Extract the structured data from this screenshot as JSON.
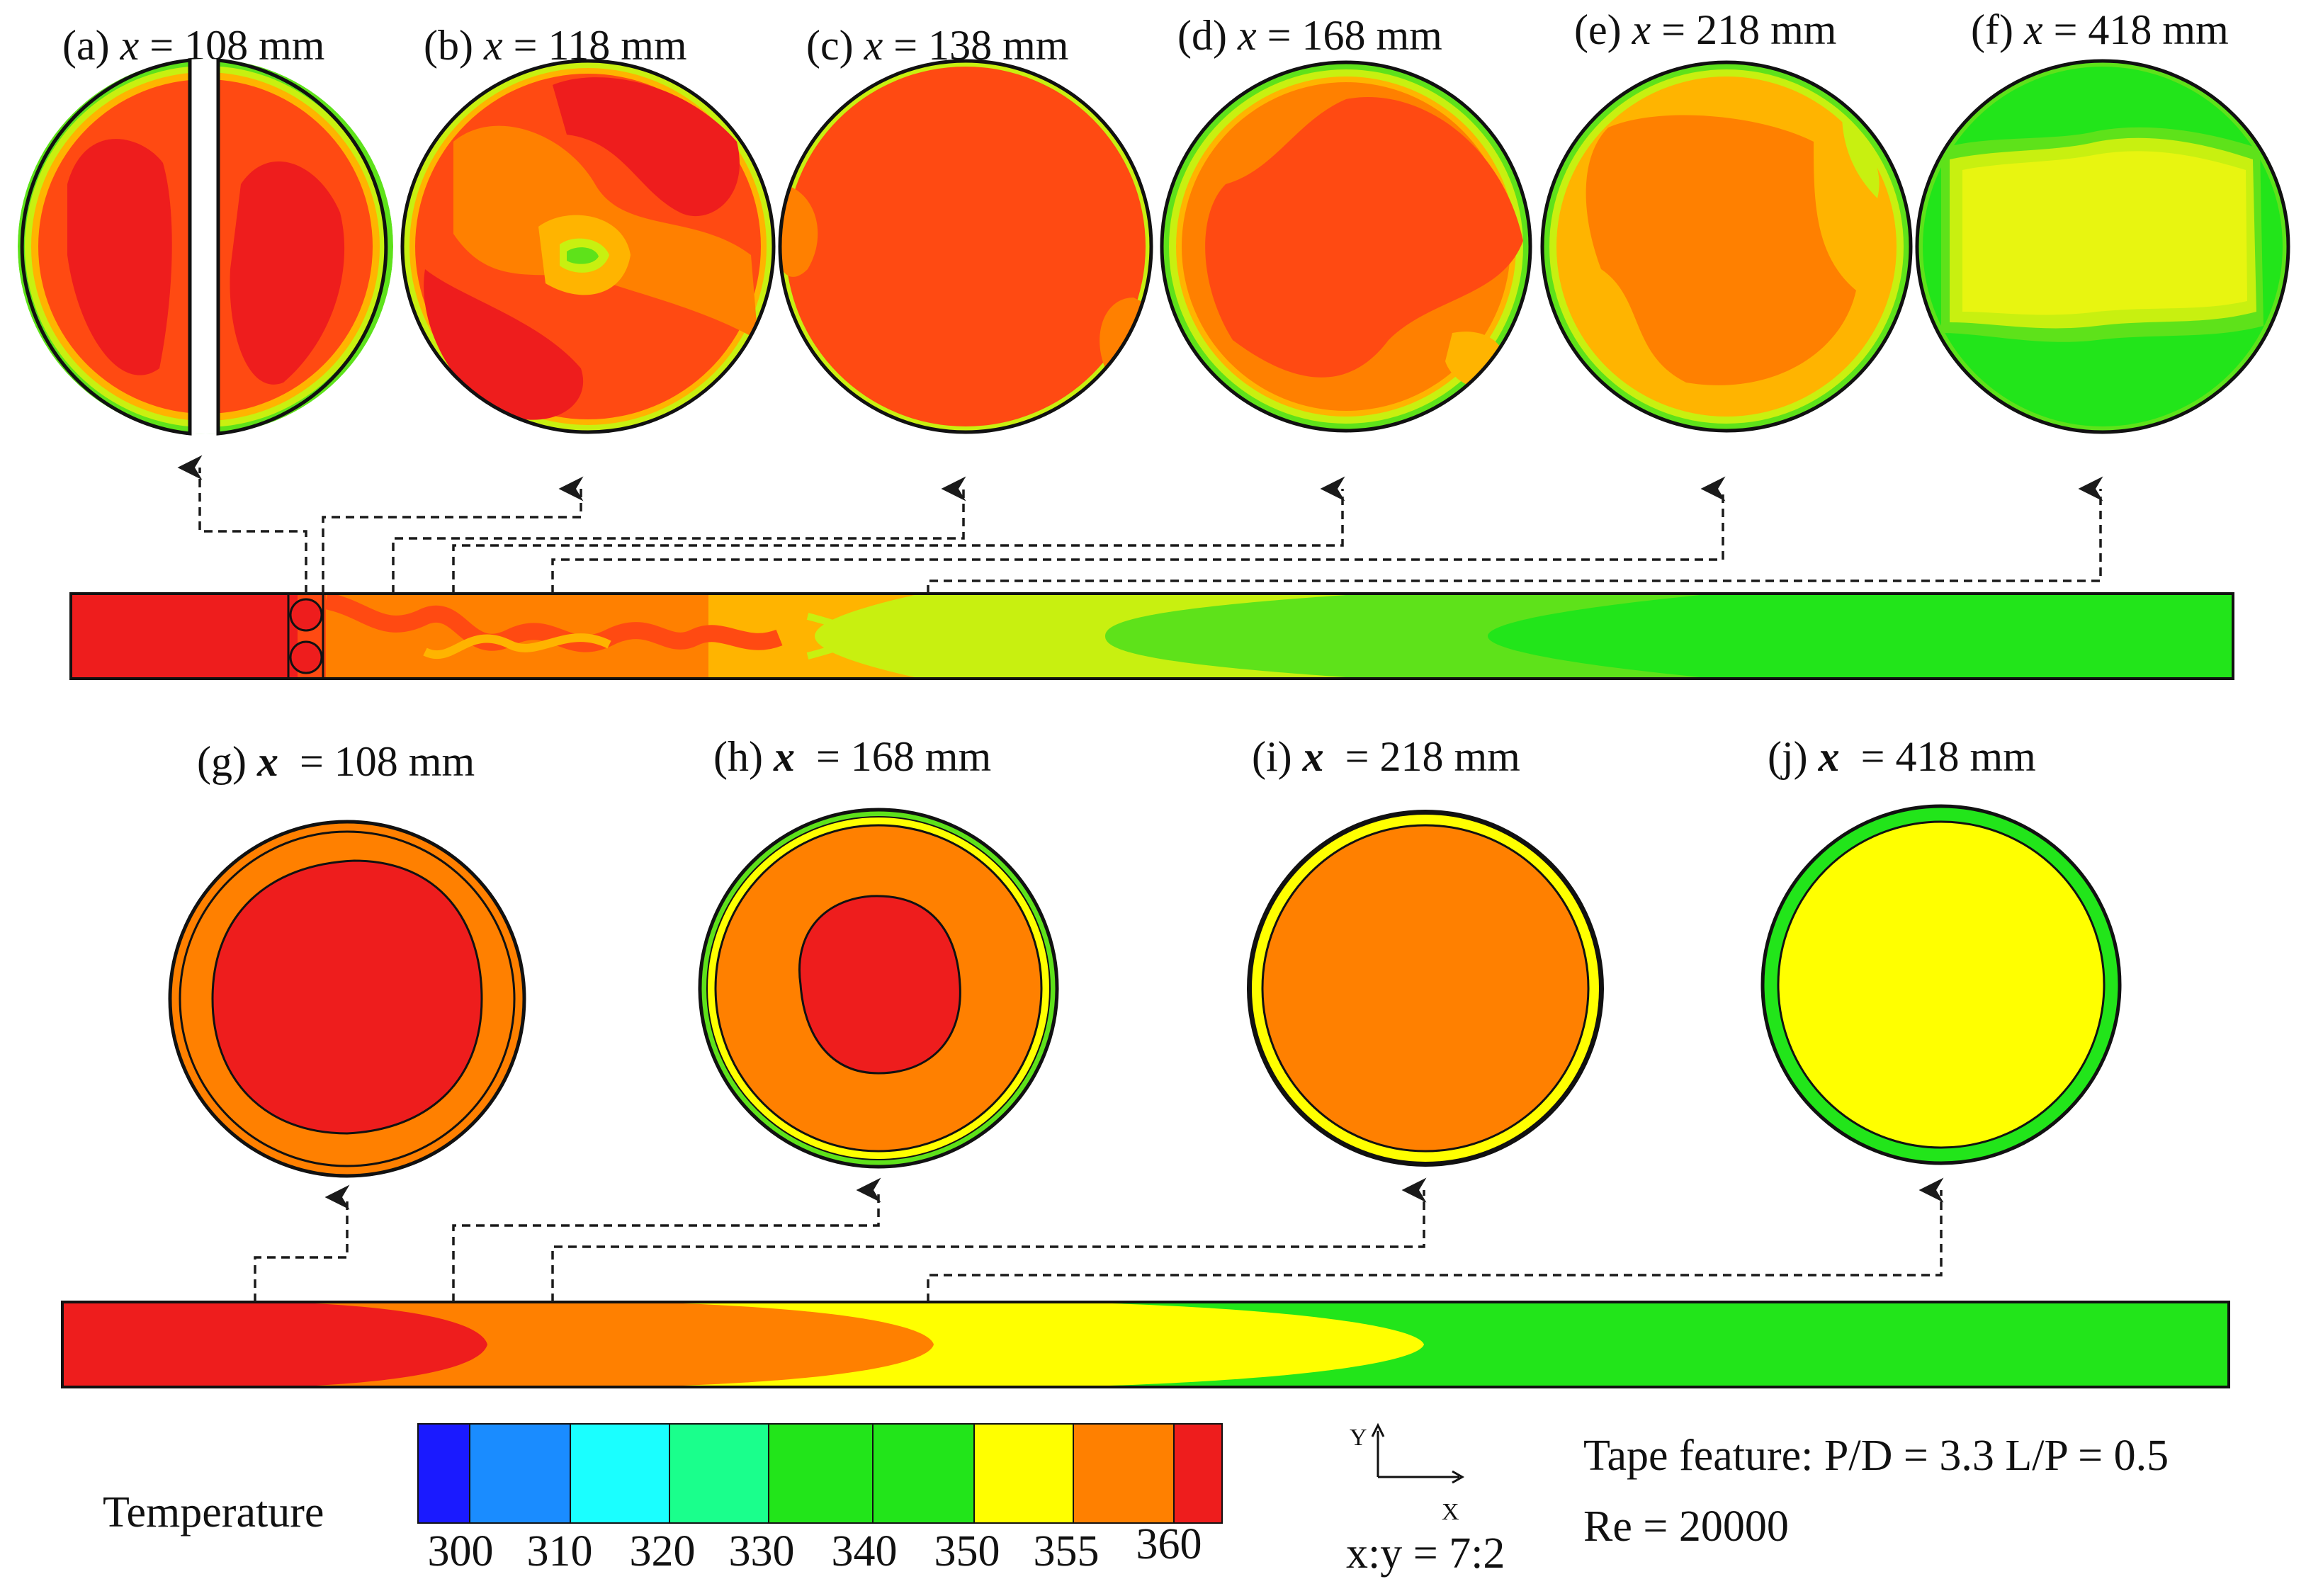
{
  "colors": {
    "red": "#ee1d1d",
    "red_orange": "#ff4a12",
    "orange": "#ff8000",
    "yellow_orange": "#ffb400",
    "yellow": "#ffff00",
    "yellow_green": "#c8f010",
    "green": "#5ee21a",
    "bright_green": "#22e51a",
    "outline": "#111111"
  },
  "top_panels": [
    {
      "prefix": "(a) ",
      "var": "x",
      "rest": " = 108 mm"
    },
    {
      "prefix": "(b) ",
      "var": "x",
      "rest": " = 118 mm"
    },
    {
      "prefix": "(c) ",
      "var": "x",
      "rest": " = 138 mm"
    },
    {
      "prefix": "(d) ",
      "var": "x",
      "rest": " = 168 mm"
    },
    {
      "prefix": "(e) ",
      "var": "x",
      "rest": " = 218 mm"
    },
    {
      "prefix": "(f) ",
      "var": "x",
      "rest": " = 418 mm"
    }
  ],
  "bottom_panels": [
    {
      "prefix": "(g) ",
      "var": "x",
      "rest": "  = 108 mm"
    },
    {
      "prefix": "(h) ",
      "var": "x",
      "rest": "  = 168 mm"
    },
    {
      "prefix": "(i) ",
      "var": "x",
      "rest": "  = 218 mm"
    },
    {
      "prefix": "(j) ",
      "var": "x",
      "rest": "  = 418 mm"
    }
  ],
  "legend": {
    "title": "Temperature",
    "ticks": [
      "300",
      "310",
      "320",
      "330",
      "340",
      "350",
      "355",
      "360"
    ],
    "swatches": [
      "#1a1aff",
      "#1a8cff",
      "#1affff",
      "#1aff8c",
      "#22e51a",
      "#22e51a",
      "#ffff00",
      "#ff8000",
      "#ee1d1d"
    ]
  },
  "axes": {
    "y": "Y",
    "x": "X",
    "ratio": "x:y = 7:2"
  },
  "info": {
    "tape": "Tape feature: P/D = 3.3 L/P = 0.5",
    "re": "Re = 20000"
  }
}
